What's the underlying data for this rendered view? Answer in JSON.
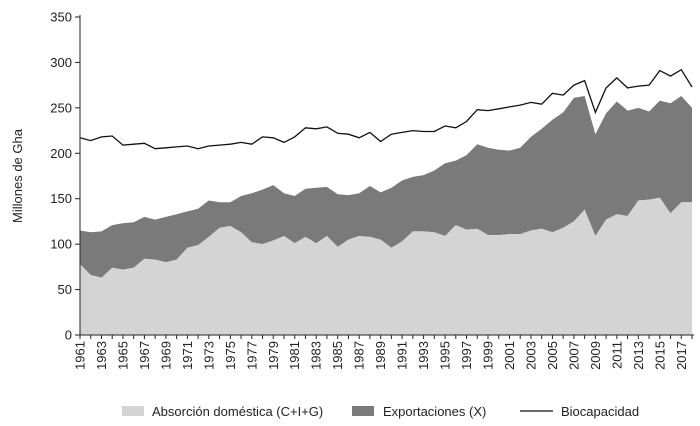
{
  "chart_data": {
    "type": "area",
    "ylabel": "Millones de Gha",
    "ylim": [
      0,
      350
    ],
    "yticks": [
      0,
      50,
      100,
      150,
      200,
      250,
      300,
      350
    ],
    "x": [
      1961,
      1962,
      1963,
      1964,
      1965,
      1966,
      1967,
      1968,
      1969,
      1970,
      1971,
      1972,
      1973,
      1974,
      1975,
      1976,
      1977,
      1978,
      1979,
      1980,
      1981,
      1982,
      1983,
      1984,
      1985,
      1986,
      1987,
      1988,
      1989,
      1990,
      1991,
      1992,
      1993,
      1994,
      1995,
      1996,
      1997,
      1998,
      1999,
      2000,
      2001,
      2002,
      2003,
      2004,
      2005,
      2006,
      2007,
      2008,
      2009,
      2010,
      2011,
      2012,
      2013,
      2014,
      2015,
      2016,
      2017,
      2018
    ],
    "xtick_labels": [
      "1961",
      "1963",
      "1965",
      "1967",
      "1969",
      "1971",
      "1973",
      "1975",
      "1977",
      "1979",
      "1981",
      "1983",
      "1985",
      "1987",
      "1989",
      "1991",
      "1993",
      "1995",
      "1997",
      "1999",
      "2001",
      "2003",
      "2005",
      "2007",
      "2009",
      "2011",
      "2013",
      "2015",
      "2017"
    ],
    "grid": false,
    "legend_position": "bottom",
    "series": [
      {
        "name": "Absorción doméstica (C+I+G)",
        "kind": "stacked-area",
        "color": "#d4d4d4",
        "values": [
          78,
          66,
          63,
          74,
          72,
          74,
          84,
          83,
          80,
          83,
          96,
          99,
          108,
          118,
          120,
          113,
          102,
          100,
          104,
          109,
          101,
          108,
          101,
          109,
          97,
          105,
          109,
          108,
          105,
          96,
          103,
          114,
          114,
          113,
          109,
          121,
          116,
          117,
          110,
          110,
          111,
          111,
          115,
          117,
          113,
          118,
          125,
          138,
          109,
          127,
          133,
          131,
          148,
          149,
          151,
          134,
          146,
          146
        ]
      },
      {
        "name": "Exportaciones (X)",
        "kind": "stacked-area",
        "color": "#7a7a7a",
        "values": [
          37,
          47,
          51,
          47,
          51,
          50,
          46,
          44,
          50,
          50,
          40,
          40,
          40,
          28,
          26,
          40,
          54,
          60,
          61,
          47,
          52,
          53,
          61,
          54,
          58,
          49,
          47,
          56,
          52,
          66,
          67,
          60,
          62,
          68,
          80,
          71,
          82,
          93,
          96,
          94,
          92,
          95,
          103,
          110,
          124,
          127,
          136,
          125,
          112,
          117,
          124,
          116,
          102,
          97,
          107,
          121,
          117,
          104
        ]
      },
      {
        "name": "Biocapacidad",
        "kind": "line",
        "color": "#111111",
        "values": [
          217,
          214,
          218,
          219,
          209,
          210,
          211,
          205,
          206,
          207,
          208,
          205,
          208,
          209,
          210,
          212,
          210,
          218,
          217,
          212,
          218,
          228,
          227,
          229,
          222,
          221,
          217,
          223,
          213,
          221,
          223,
          225,
          224,
          224,
          230,
          228,
          235,
          248,
          247,
          249,
          251,
          253,
          256,
          254,
          266,
          264,
          275,
          280,
          245,
          272,
          283,
          272,
          274,
          275,
          291,
          285,
          292,
          273
        ]
      }
    ]
  }
}
